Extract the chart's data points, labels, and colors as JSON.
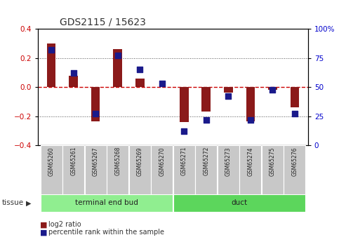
{
  "title": "GDS2115 / 15623",
  "samples": [
    "GSM65260",
    "GSM65261",
    "GSM65267",
    "GSM65268",
    "GSM65269",
    "GSM65270",
    "GSM65271",
    "GSM65272",
    "GSM65273",
    "GSM65274",
    "GSM65275",
    "GSM65276"
  ],
  "log2_ratio": [
    0.3,
    0.08,
    -0.235,
    0.26,
    0.06,
    0.0,
    -0.24,
    -0.17,
    -0.04,
    -0.235,
    -0.02,
    -0.14
  ],
  "percentile_rank": [
    82,
    62,
    27,
    77,
    65,
    53,
    12,
    22,
    42,
    22,
    48,
    27
  ],
  "groups": [
    {
      "label": "terminal end bud",
      "start": 0,
      "end": 6,
      "color": "#90EE90"
    },
    {
      "label": "duct",
      "start": 6,
      "end": 12,
      "color": "#5CD65C"
    }
  ],
  "bar_color": "#8B1A1A",
  "dot_color": "#1A1A8B",
  "zero_line_color": "#CC0000",
  "dotted_line_color": "#555555",
  "ylim_left": [
    -0.4,
    0.4
  ],
  "ylim_right": [
    0,
    100
  ],
  "yticks_left": [
    -0.4,
    -0.2,
    0.0,
    0.2,
    0.4
  ],
  "yticks_right": [
    0,
    25,
    50,
    75,
    100
  ],
  "ylabel_left_color": "#CC0000",
  "ylabel_right_color": "#0000CC",
  "tissue_label": "tissue",
  "legend_red": "log2 ratio",
  "legend_blue": "percentile rank within the sample",
  "background_xtick": "#C8C8C8",
  "bar_width": 0.4,
  "dot_size": 35
}
